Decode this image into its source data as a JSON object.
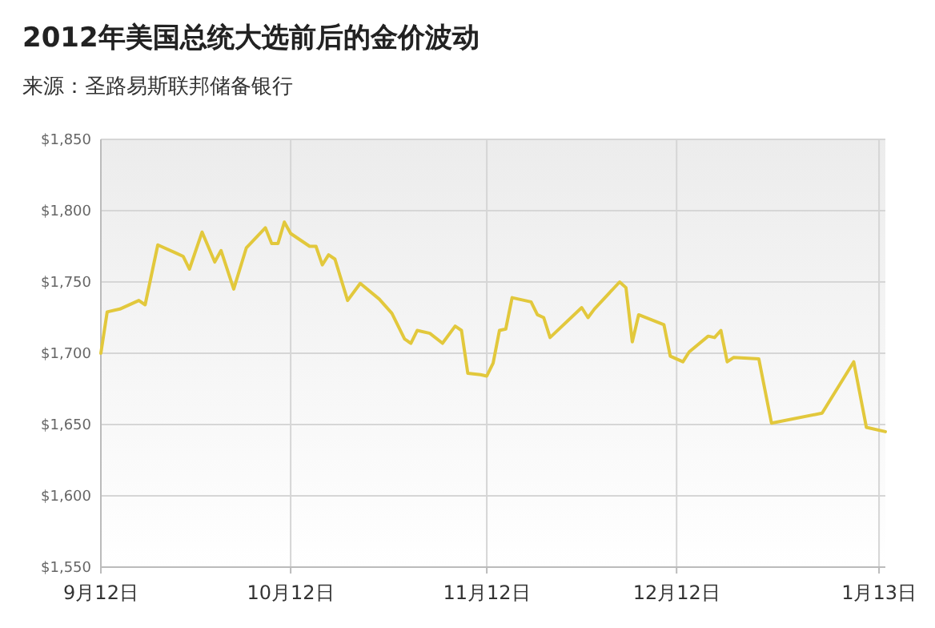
{
  "chart_data": {
    "type": "line",
    "title": "2012年美国总统大选前后的金价波动",
    "subtitle": "来源：圣路易斯联邦储备银行",
    "x": [
      "2012-09-12",
      "2012-09-13",
      "2012-09-15",
      "2012-09-18",
      "2012-09-19",
      "2012-09-21",
      "2012-09-24",
      "2012-09-25",
      "2012-09-26",
      "2012-09-28",
      "2012-09-30",
      "2012-10-01",
      "2012-10-03",
      "2012-10-05",
      "2012-10-08",
      "2012-10-09",
      "2012-10-10",
      "2012-10-11",
      "2012-10-12",
      "2012-10-15",
      "2012-10-16",
      "2012-10-17",
      "2012-10-18",
      "2012-10-19",
      "2012-10-21",
      "2012-10-23",
      "2012-10-26",
      "2012-10-28",
      "2012-10-30",
      "2012-10-31",
      "2012-11-01",
      "2012-11-03",
      "2012-11-05",
      "2012-11-07",
      "2012-11-08",
      "2012-11-09",
      "2012-11-11",
      "2012-11-12",
      "2012-11-13",
      "2012-11-14",
      "2012-11-15",
      "2012-11-16",
      "2012-11-19",
      "2012-11-20",
      "2012-11-21",
      "2012-11-22",
      "2012-11-27",
      "2012-11-28",
      "2012-11-29",
      "2012-12-03",
      "2012-12-04",
      "2012-12-05",
      "2012-12-06",
      "2012-12-10",
      "2012-12-11",
      "2012-12-13",
      "2012-12-14",
      "2012-12-17",
      "2012-12-18",
      "2012-12-19",
      "2012-12-20",
      "2012-12-21",
      "2012-12-25",
      "2012-12-27",
      "2013-01-04",
      "2013-01-09",
      "2013-01-11",
      "2013-01-14"
    ],
    "series": [
      {
        "color": "#e2c83c",
        "values": [
          1700,
          1729,
          1731,
          1737,
          1734,
          1776,
          1770,
          1768,
          1759,
          1785,
          1764,
          1772,
          1745,
          1774,
          1788,
          1777,
          1777,
          1792,
          1784,
          1775,
          1775,
          1762,
          1769,
          1766,
          1737,
          1749,
          1738,
          1728,
          1710,
          1707,
          1716,
          1714,
          1707,
          1719,
          1716,
          1686,
          1685,
          1684,
          1693,
          1716,
          1717,
          1739,
          1736,
          1727,
          1725,
          1711,
          1732,
          1725,
          1731,
          1750,
          1746,
          1708,
          1727,
          1720,
          1698,
          1694,
          1701,
          1712,
          1711,
          1716,
          1694,
          1697,
          1696,
          1651,
          1658,
          1694,
          1648,
          1645
        ]
      }
    ],
    "xlim": [
      "2012-09-12",
      "2013-01-14"
    ],
    "xticks": [
      {
        "value": "2012-09-12",
        "label": "9月12日"
      },
      {
        "value": "2012-10-12",
        "label": "10月12日"
      },
      {
        "value": "2012-11-12",
        "label": "11月12日"
      },
      {
        "value": "2012-12-12",
        "label": "12月12日"
      },
      {
        "value": "2013-01-13",
        "label": "1月13日"
      }
    ],
    "ylim": [
      1550,
      1850
    ],
    "yticks": [
      {
        "value": 1550,
        "label": "$1,550"
      },
      {
        "value": 1600,
        "label": "$1,600"
      },
      {
        "value": 1650,
        "label": "$1,650"
      },
      {
        "value": 1700,
        "label": "$1,700"
      },
      {
        "value": 1750,
        "label": "$1,750"
      },
      {
        "value": 1800,
        "label": "$1,800"
      },
      {
        "value": 1850,
        "label": "$1,850"
      }
    ],
    "grid": true
  }
}
